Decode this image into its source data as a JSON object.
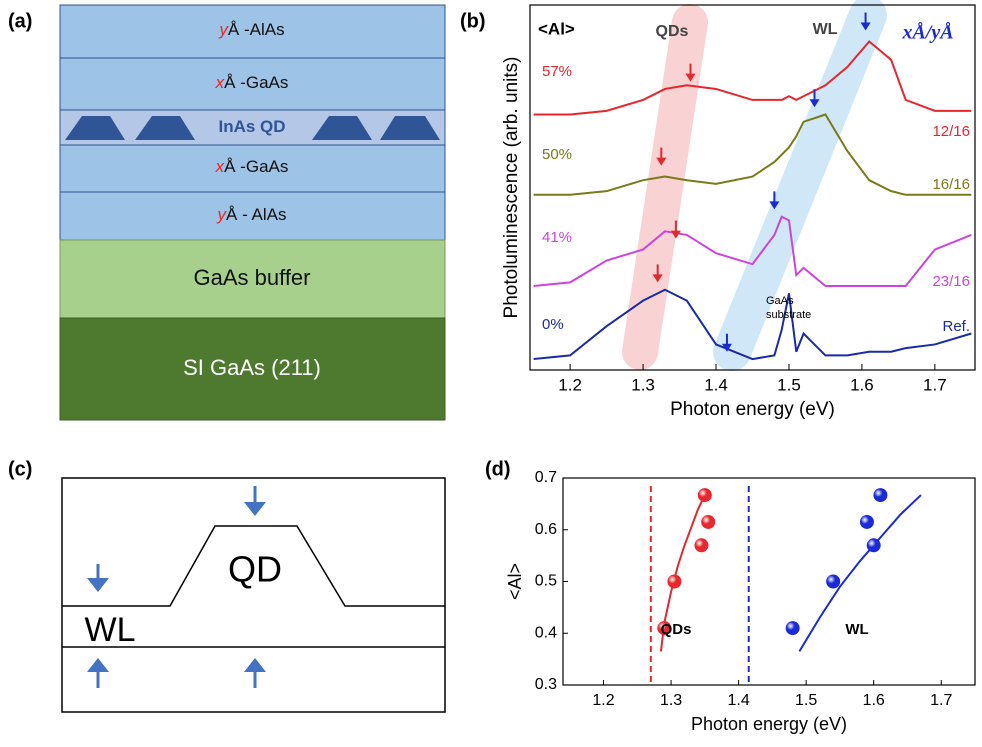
{
  "panel_labels": [
    "(a)",
    "(b)",
    "(c)",
    "(d)"
  ],
  "panel_a": {
    "layers": [
      {
        "italic": "y",
        "text": "Å -AlAs"
      },
      {
        "italic": "x",
        "text": "Å -GaAs"
      },
      {
        "text": "InAs QD"
      },
      {
        "italic": "x",
        "text": "Å -GaAs"
      },
      {
        "italic": "y",
        "text": "Å - AlAs"
      },
      {
        "text": "GaAs buffer"
      },
      {
        "text": "SI GaAs (211)"
      }
    ]
  },
  "panel_c": {
    "qd_label": "QD",
    "wl_label": "WL"
  },
  "chart_data": [
    {
      "type": "line",
      "xlabel": "Photon energy (eV)",
      "ylabel": "Photoluminescence (arb. units)",
      "xlim": [
        1.145,
        1.755
      ],
      "xticks": [
        1.2,
        1.3,
        1.4,
        1.5,
        1.6,
        1.7
      ],
      "ylim": [
        0,
        100
      ],
      "legend_title": "xÅ/yÅ",
      "group_label": "<Al>",
      "qd_label": "QDs",
      "wl_label": "WL",
      "substrate_label": [
        "GaAs",
        "substrate"
      ],
      "x": [
        1.15,
        1.2,
        1.25,
        1.3,
        1.33,
        1.36,
        1.4,
        1.45,
        1.48,
        1.49,
        1.5,
        1.51,
        1.52,
        1.55,
        1.58,
        1.61,
        1.64,
        1.66,
        1.7,
        1.75
      ],
      "series": [
        {
          "name": "57%",
          "sample": "12/16",
          "color": "#e8262b",
          "values": [
            70,
            70,
            71,
            74,
            77,
            78,
            77,
            74,
            74,
            74,
            75,
            74,
            75,
            78,
            83,
            90,
            85,
            74,
            71,
            71
          ]
        },
        {
          "name": "50%",
          "sample": "16/16",
          "color": "#7a7a1a",
          "values": [
            48,
            48,
            49,
            52,
            53,
            52,
            51,
            53,
            57,
            59,
            61,
            64,
            68,
            70,
            60,
            52,
            49,
            48,
            48,
            48
          ]
        },
        {
          "name": "41%",
          "sample": "23/16",
          "color": "#cc44dd",
          "values": [
            23,
            24,
            30,
            33,
            38,
            37,
            32,
            29,
            37,
            42,
            41,
            26,
            28,
            23,
            23,
            23,
            23,
            23,
            33,
            37
          ]
        },
        {
          "name": "0%",
          "sample": "Ref.",
          "color": "#1a2aa8",
          "values": [
            3,
            4,
            12,
            19,
            22,
            19,
            7,
            3,
            4,
            11,
            21,
            5,
            10,
            4,
            4,
            5,
            5,
            6,
            7,
            10
          ]
        }
      ],
      "arrows": [
        {
          "x": 1.365,
          "y": 79,
          "color": "#e8262b"
        },
        {
          "x": 1.325,
          "y": 56,
          "color": "#e8262b"
        },
        {
          "x": 1.345,
          "y": 36,
          "color": "#e8262b"
        },
        {
          "x": 1.32,
          "y": 24,
          "color": "#e8262b"
        },
        {
          "x": 1.605,
          "y": 93,
          "color": "#1a2ad8"
        },
        {
          "x": 1.535,
          "y": 72,
          "color": "#1a2ad8"
        },
        {
          "x": 1.48,
          "y": 44,
          "color": "#1a2ad8"
        },
        {
          "x": 1.415,
          "y": 5,
          "color": "#1a2ad8"
        }
      ]
    },
    {
      "type": "scatter",
      "xlabel": "Photon energy (eV)",
      "ylabel": "<Al>",
      "xlim": [
        1.14,
        1.75
      ],
      "xticks": [
        1.2,
        1.3,
        1.4,
        1.5,
        1.6,
        1.7
      ],
      "ylim": [
        0.3,
        0.7
      ],
      "yticks": [
        0.3,
        0.4,
        0.5,
        0.6,
        0.7
      ],
      "series": [
        {
          "name": "QDs",
          "color": "#e8262b",
          "x": [
            1.29,
            1.305,
            1.345,
            1.355,
            1.35
          ],
          "values": [
            0.41,
            0.5,
            0.57,
            0.615,
            0.667
          ],
          "fit_x": [
            1.285,
            1.29,
            1.3,
            1.31,
            1.32,
            1.33,
            1.34,
            1.35
          ],
          "fit_y": [
            0.365,
            0.42,
            0.48,
            0.53,
            0.57,
            0.605,
            0.64,
            0.667
          ]
        },
        {
          "name": "WL",
          "color": "#1a2ad8",
          "x": [
            1.48,
            1.54,
            1.6,
            1.59,
            1.61
          ],
          "values": [
            0.41,
            0.5,
            0.57,
            0.615,
            0.667
          ],
          "fit_x": [
            1.49,
            1.52,
            1.55,
            1.58,
            1.61,
            1.64,
            1.67
          ],
          "fit_y": [
            0.365,
            0.43,
            0.49,
            0.54,
            0.585,
            0.63,
            0.667
          ]
        }
      ],
      "vlines": [
        {
          "x": 1.27,
          "color": "#e8262b"
        },
        {
          "x": 1.415,
          "color": "#1a2ad8"
        }
      ]
    }
  ]
}
